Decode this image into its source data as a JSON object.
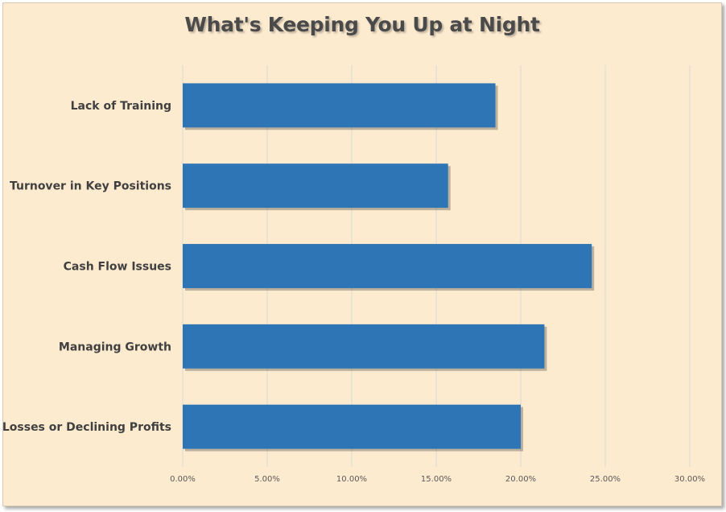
{
  "chart_data": {
    "type": "bar",
    "orientation": "horizontal",
    "title": "What's Keeping You Up at Night",
    "categories": [
      "Lack of Training",
      "Turnover in Key Positions",
      "Cash Flow Issues",
      "Managing Growth",
      "Losses or Declining Profits"
    ],
    "values": [
      18.5,
      15.7,
      24.2,
      21.4,
      20.0
    ],
    "xlim": [
      0,
      30
    ],
    "ticks": [
      "0.00%",
      "5.00%",
      "10.00%",
      "15.00%",
      "20.00%",
      "25.00%",
      "30.00%"
    ],
    "grid": true,
    "legend": "none",
    "colors": {
      "bar": "#2e75b6",
      "background": "#fdebd0",
      "grid": "#d9d9d9"
    }
  }
}
